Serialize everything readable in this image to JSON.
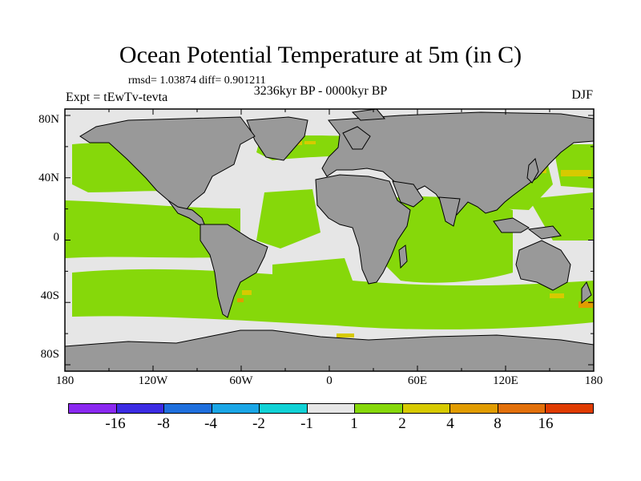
{
  "title": "Ocean Potential Temperature at 5m (in C)",
  "stats": "rmsd= 1.03874 diff= 0.901211",
  "expt": "Expt = tEwTv-tevta",
  "period": "3236kyr BP - 0000kyr BP",
  "season": "DJF",
  "lat_ticks": [
    "80N",
    "40N",
    "0",
    "40S",
    "80S"
  ],
  "lon_ticks": [
    "180",
    "120W",
    "60W",
    "0",
    "60E",
    "120E",
    "180"
  ],
  "colors": {
    "land": "#999999",
    "neutral": "#e6e6e6",
    "green": "#86d80a",
    "yellow": "#d7ca00",
    "orange": "#e19c00"
  },
  "colorbar": {
    "colors": [
      "#8a28f0",
      "#3b2be3",
      "#1f6fdd",
      "#1aa6e6",
      "#10d2d6",
      "#e6e6e6",
      "#86d80a",
      "#d7ca00",
      "#e19c00",
      "#e2700a",
      "#df3b00"
    ],
    "labels": [
      "-16",
      "-8",
      "-4",
      "-2",
      "-1",
      "1",
      "2",
      "4",
      "8",
      "16"
    ]
  }
}
